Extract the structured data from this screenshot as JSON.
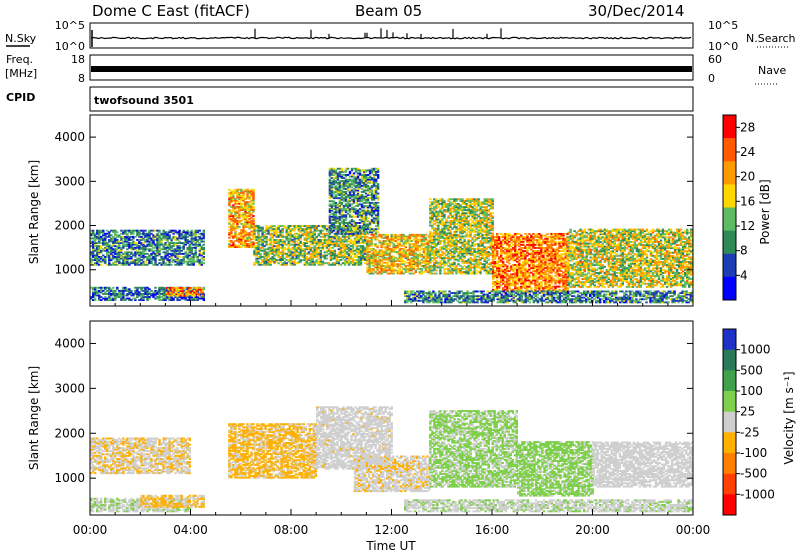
{
  "header": {
    "station": "Dome C East (fitACF)",
    "beam": "Beam 05",
    "date": "30/Dec/2014"
  },
  "left_labels": {
    "nsky": "N.Sky",
    "freq": "Freq.",
    "freq_unit": "[MHz]",
    "cpid": "CPID"
  },
  "right_labels": {
    "nsearch": "N.Search",
    "nave": "Nave"
  },
  "small_ticks": {
    "noise_top": "10^5",
    "noise_bottom": "10^0",
    "freq_top": "18",
    "freq_bottom": "8",
    "nave_top": "60",
    "nave_bottom": "0"
  },
  "cpid_text": "twofsound 3501",
  "colors": {
    "power": [
      "#0000ff",
      "#1e3cb4",
      "#2e8b57",
      "#5dbb63",
      "#ffd700",
      "#ff9b00",
      "#ff5a00",
      "#ff0000"
    ],
    "velocity": [
      "#1e32c8",
      "#2a7a5a",
      "#3fa24a",
      "#7ed04a",
      "#cfcfcf",
      "#ffb000",
      "#ff7f00",
      "#ff4000",
      "#ff0000"
    ]
  },
  "chart_data": [
    {
      "type": "heatmap",
      "title": "",
      "xlabel": "Time UT",
      "ylabel": "Slant Range [km]",
      "x_ticks": [
        "00:00",
        "04:00",
        "08:00",
        "12:00",
        "16:00",
        "20:00",
        "00:00"
      ],
      "y_ticks": [
        "1000",
        "2000",
        "3000",
        "4000"
      ],
      "xlim_hours": [
        0,
        24
      ],
      "ylim_km": [
        180,
        4500
      ],
      "colorbar": {
        "label": "Power [dB]",
        "ticks": [
          "4",
          "8",
          "12",
          "16",
          "20",
          "24",
          "28"
        ],
        "range": [
          0,
          30
        ]
      },
      "bands": [
        {
          "t0": 0.0,
          "t1": 4.5,
          "r0": 1100,
          "r1": 1900,
          "value": 9
        },
        {
          "t0": 0.0,
          "t1": 4.5,
          "r0": 300,
          "r1": 600,
          "value": 7
        },
        {
          "t0": 3.0,
          "t1": 4.5,
          "r0": 400,
          "r1": 600,
          "value": 22
        },
        {
          "t0": 5.5,
          "t1": 6.5,
          "r0": 1500,
          "r1": 2800,
          "value": 20
        },
        {
          "t0": 6.5,
          "t1": 11.0,
          "r0": 1100,
          "r1": 2000,
          "value": 14
        },
        {
          "t0": 9.5,
          "t1": 11.5,
          "r0": 1800,
          "r1": 3300,
          "value": 10
        },
        {
          "t0": 11.0,
          "t1": 13.5,
          "r0": 900,
          "r1": 1800,
          "value": 18
        },
        {
          "t0": 13.5,
          "t1": 16.0,
          "r0": 900,
          "r1": 2600,
          "value": 15
        },
        {
          "t0": 16.0,
          "t1": 19.0,
          "r0": 500,
          "r1": 1800,
          "value": 22
        },
        {
          "t0": 19.0,
          "t1": 24.0,
          "r0": 600,
          "r1": 1900,
          "value": 16
        },
        {
          "t0": 12.5,
          "t1": 24.0,
          "r0": 250,
          "r1": 500,
          "value": 9
        }
      ]
    },
    {
      "type": "heatmap",
      "title": "",
      "xlabel": "Time UT",
      "ylabel": "Slant Range [km]",
      "x_ticks": [
        "00:00",
        "04:00",
        "08:00",
        "12:00",
        "16:00",
        "20:00",
        "00:00"
      ],
      "y_ticks": [
        "1000",
        "2000",
        "3000",
        "4000"
      ],
      "xlim_hours": [
        0,
        24
      ],
      "ylim_km": [
        180,
        4500
      ],
      "colorbar": {
        "label": "Velocity [m s⁻¹]",
        "ticks": [
          "1000",
          "500",
          "100",
          "25",
          "-25",
          "-100",
          "-500",
          "-1000"
        ],
        "range": [
          -1000,
          1000
        ]
      },
      "bands": [
        {
          "t0": 0.0,
          "t1": 4.0,
          "r0": 1100,
          "r1": 1900,
          "value": -80
        },
        {
          "t0": 0.0,
          "t1": 4.0,
          "r0": 250,
          "r1": 550,
          "value": 60
        },
        {
          "t0": 2.0,
          "t1": 4.5,
          "r0": 350,
          "r1": 600,
          "value": -150
        },
        {
          "t0": 5.5,
          "t1": 9.0,
          "r0": 1000,
          "r1": 2200,
          "value": -150
        },
        {
          "t0": 9.0,
          "t1": 12.0,
          "r0": 1200,
          "r1": 2600,
          "value": -10
        },
        {
          "t0": 10.5,
          "t1": 13.5,
          "r0": 700,
          "r1": 1500,
          "value": -60
        },
        {
          "t0": 13.5,
          "t1": 17.0,
          "r0": 800,
          "r1": 2500,
          "value": 150
        },
        {
          "t0": 17.0,
          "t1": 20.0,
          "r0": 600,
          "r1": 1800,
          "value": 180
        },
        {
          "t0": 20.0,
          "t1": 24.0,
          "r0": 800,
          "r1": 1800,
          "value": 0
        },
        {
          "t0": 12.5,
          "t1": 24.0,
          "r0": 250,
          "r1": 500,
          "value": 60
        }
      ]
    }
  ]
}
